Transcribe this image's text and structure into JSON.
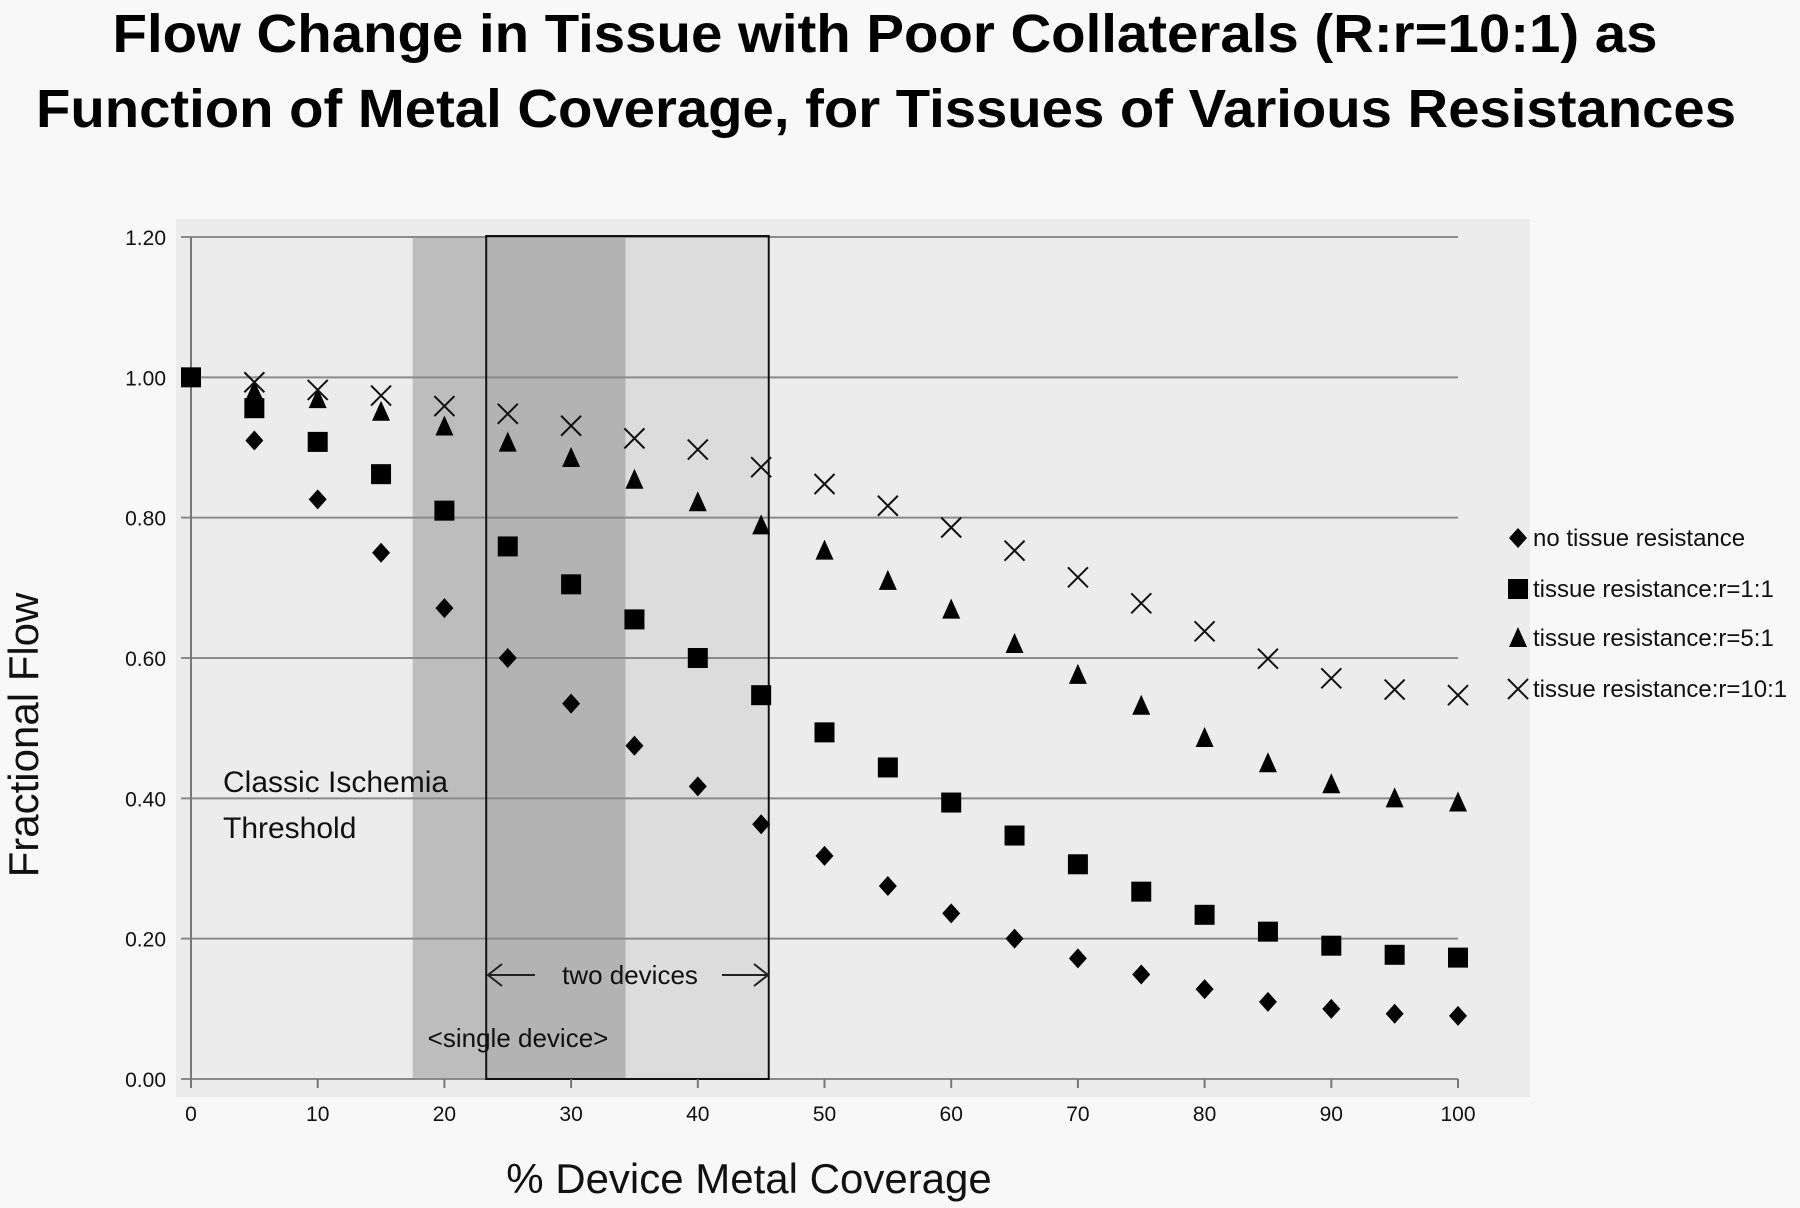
{
  "chart_data": {
    "type": "scatter",
    "title": [
      "Flow Change in Tissue with Poor Collaterals (R:r=10:1) as",
      "Function of Metal Coverage, for Tissues of Various Resistances"
    ],
    "xlabel": "% Device Metal Coverage",
    "ylabel": "Fractional Flow",
    "xlim": [
      0,
      100
    ],
    "ylim": [
      0,
      1.2
    ],
    "xticks": [
      "0",
      "10",
      "20",
      "30",
      "40",
      "50",
      "60",
      "70",
      "80",
      "90",
      "100"
    ],
    "yticks": [
      "0.00",
      "0.20",
      "0.40",
      "0.60",
      "0.80",
      "1.00",
      "1.20"
    ],
    "grid": "horizontal",
    "legend_position": "right",
    "x": [
      0,
      5,
      10,
      15,
      20,
      25,
      30,
      35,
      40,
      45,
      50,
      55,
      60,
      65,
      70,
      75,
      80,
      85,
      90,
      95,
      100
    ],
    "series": [
      {
        "name": "no tissue resistance",
        "marker": "diamond",
        "values": [
          1.0,
          0.91,
          0.826,
          0.75,
          0.671,
          0.6,
          0.535,
          0.475,
          0.417,
          0.363,
          0.318,
          0.275,
          0.236,
          0.2,
          0.172,
          0.149,
          0.128,
          0.11,
          0.1,
          0.093,
          0.09
        ]
      },
      {
        "name": "tissue resistance:r=1:1",
        "marker": "square",
        "values": [
          1.0,
          0.956,
          0.908,
          0.862,
          0.81,
          0.759,
          0.705,
          0.655,
          0.6,
          0.547,
          0.494,
          0.444,
          0.394,
          0.347,
          0.306,
          0.267,
          0.234,
          0.21,
          0.19,
          0.177,
          0.173
        ]
      },
      {
        "name": "tissue resistance:r=5:1",
        "marker": "triangle",
        "values": [
          1.0,
          0.98,
          0.969,
          0.951,
          0.93,
          0.907,
          0.885,
          0.854,
          0.822,
          0.789,
          0.753,
          0.71,
          0.669,
          0.62,
          0.576,
          0.532,
          0.486,
          0.45,
          0.42,
          0.4,
          0.394
        ]
      },
      {
        "name": "tissue resistance:r=10:1",
        "marker": "x",
        "values": [
          1.0,
          0.993,
          0.982,
          0.974,
          0.959,
          0.948,
          0.931,
          0.913,
          0.897,
          0.872,
          0.848,
          0.817,
          0.786,
          0.753,
          0.715,
          0.678,
          0.638,
          0.599,
          0.571,
          0.555,
          0.547
        ]
      }
    ],
    "regions": [
      {
        "name": "single device",
        "x_range": [
          17.5,
          34.3
        ]
      },
      {
        "name": "two devices",
        "x_range": [
          23.3,
          45.6
        ]
      }
    ],
    "annotations": {
      "ischemia_line1": "Classic Ischemia",
      "ischemia_line2": "Threshold",
      "two_devices": "two devices",
      "single_device": "<single device>"
    }
  }
}
